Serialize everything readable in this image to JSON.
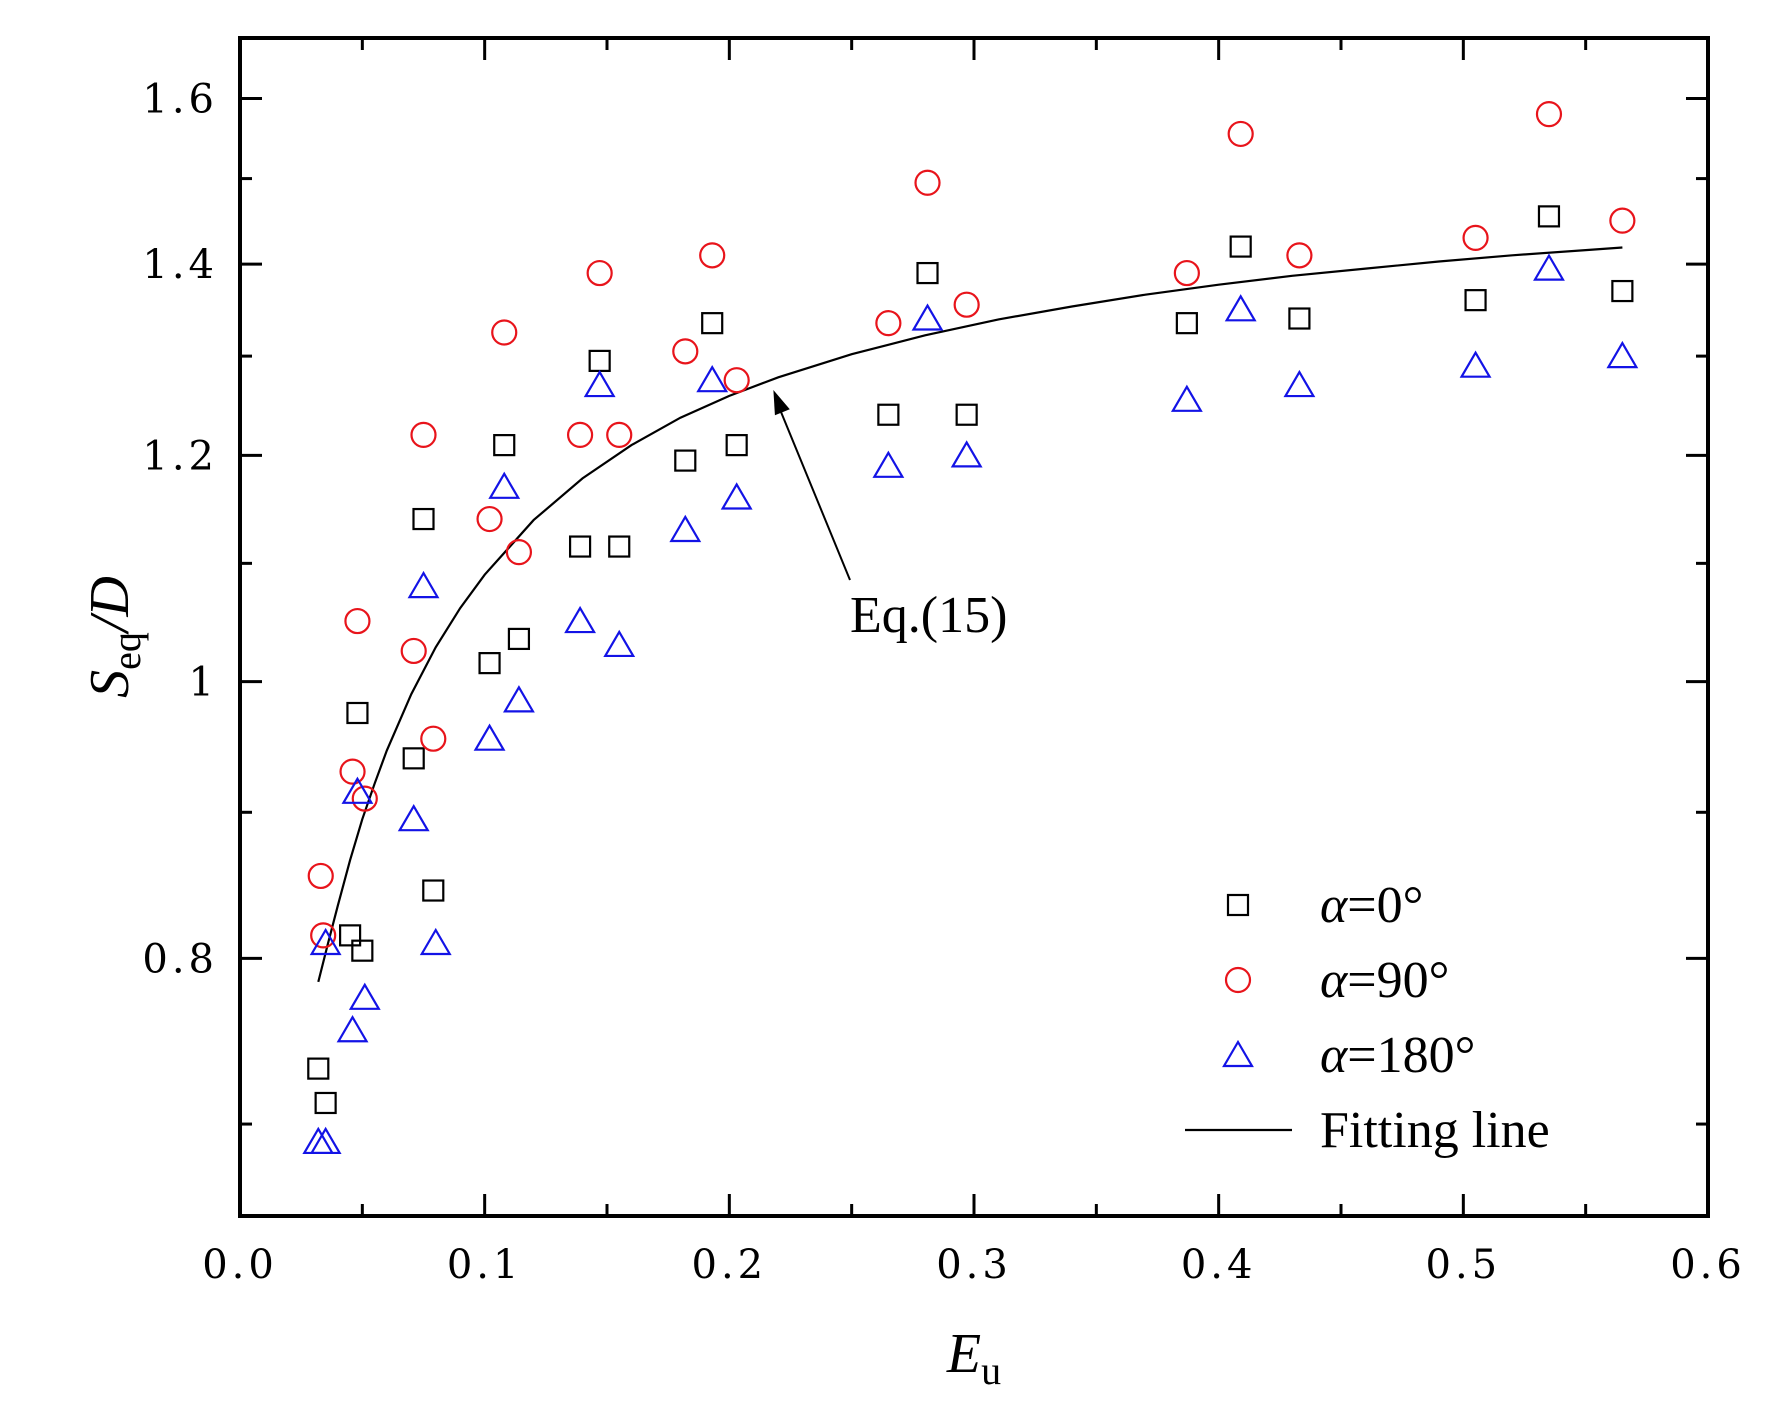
{
  "chart_data": {
    "type": "scatter",
    "xlabel": "E",
    "xlabel_sub": "u",
    "ylabel": "S",
    "ylabel_sub": "eq",
    "ylabel_suffix": "/D",
    "xlim": [
      0.0,
      0.6
    ],
    "ylim": [
      0.65,
      1.68
    ],
    "y_scale": "log",
    "x_ticks": [
      0.0,
      0.1,
      0.2,
      0.3,
      0.4,
      0.5,
      0.6
    ],
    "x_tick_labels": [
      "0.0",
      "0.1",
      "0.2",
      "0.3",
      "0.4",
      "0.5",
      "0.6"
    ],
    "y_ticks": [
      0.8,
      1.0,
      1.2,
      1.4,
      1.6
    ],
    "y_tick_labels": [
      "0.8",
      "1",
      "1.2",
      "1.4",
      "1.6"
    ],
    "grid": false,
    "legend_position": "bottom-right",
    "series": [
      {
        "name": "α=0°",
        "alpha": "α",
        "angle": "=0°",
        "marker": "square",
        "color": "#000000",
        "x": [
          0.032,
          0.035,
          0.045,
          0.05,
          0.048,
          0.071,
          0.075,
          0.079,
          0.102,
          0.108,
          0.114,
          0.139,
          0.147,
          0.155,
          0.182,
          0.193,
          0.203,
          0.265,
          0.281,
          0.297,
          0.387,
          0.409,
          0.433,
          0.505,
          0.535,
          0.565
        ],
        "y": [
          0.732,
          0.712,
          0.815,
          0.805,
          0.975,
          0.94,
          1.14,
          0.845,
          1.015,
          1.21,
          1.035,
          1.115,
          1.295,
          1.115,
          1.195,
          1.335,
          1.21,
          1.24,
          1.39,
          1.24,
          1.335,
          1.42,
          1.34,
          1.36,
          1.455,
          1.37
        ]
      },
      {
        "name": "α=90°",
        "alpha": "α",
        "angle": "=90°",
        "marker": "circle",
        "color": "#e8141b",
        "x": [
          0.033,
          0.034,
          0.046,
          0.048,
          0.051,
          0.071,
          0.075,
          0.079,
          0.102,
          0.108,
          0.114,
          0.139,
          0.147,
          0.155,
          0.182,
          0.193,
          0.203,
          0.265,
          0.281,
          0.297,
          0.387,
          0.409,
          0.433,
          0.505,
          0.535,
          0.565
        ],
        "y": [
          0.855,
          0.815,
          0.93,
          1.05,
          0.91,
          1.025,
          1.22,
          0.955,
          1.14,
          1.325,
          1.11,
          1.22,
          1.39,
          1.22,
          1.305,
          1.41,
          1.275,
          1.335,
          1.495,
          1.355,
          1.39,
          1.555,
          1.41,
          1.43,
          1.58,
          1.45
        ]
      },
      {
        "name": "α=180°",
        "alpha": "α",
        "angle": "=180°",
        "marker": "triangle",
        "color": "#1313e6",
        "x": [
          0.032,
          0.035,
          0.035,
          0.046,
          0.048,
          0.051,
          0.071,
          0.075,
          0.08,
          0.102,
          0.108,
          0.114,
          0.139,
          0.147,
          0.155,
          0.182,
          0.193,
          0.203,
          0.265,
          0.281,
          0.297,
          0.387,
          0.409,
          0.433,
          0.505,
          0.535,
          0.565
        ],
        "y": [
          0.69,
          0.69,
          0.81,
          0.755,
          0.915,
          0.775,
          0.895,
          1.08,
          0.81,
          0.955,
          1.17,
          0.985,
          1.05,
          1.27,
          1.03,
          1.13,
          1.275,
          1.16,
          1.19,
          1.34,
          1.2,
          1.255,
          1.35,
          1.27,
          1.29,
          1.395,
          1.3
        ]
      },
      {
        "name": "Fitting line",
        "marker": "line",
        "color": "#000000",
        "x": [
          0.032,
          0.036,
          0.04,
          0.045,
          0.05,
          0.055,
          0.06,
          0.07,
          0.08,
          0.09,
          0.1,
          0.12,
          0.14,
          0.16,
          0.18,
          0.2,
          0.22,
          0.25,
          0.28,
          0.31,
          0.34,
          0.37,
          0.4,
          0.43,
          0.46,
          0.49,
          0.52,
          0.55,
          0.565
        ],
        "y": [
          0.785,
          0.81,
          0.835,
          0.866,
          0.895,
          0.921,
          0.946,
          0.99,
          1.028,
          1.061,
          1.09,
          1.139,
          1.178,
          1.21,
          1.237,
          1.259,
          1.278,
          1.302,
          1.322,
          1.339,
          1.353,
          1.366,
          1.377,
          1.387,
          1.395,
          1.403,
          1.41,
          1.416,
          1.419
        ]
      }
    ],
    "annotations": [
      {
        "text": "Eq.(15)",
        "arrow_to_x": 0.218,
        "arrow_to_y": 1.265
      }
    ]
  }
}
